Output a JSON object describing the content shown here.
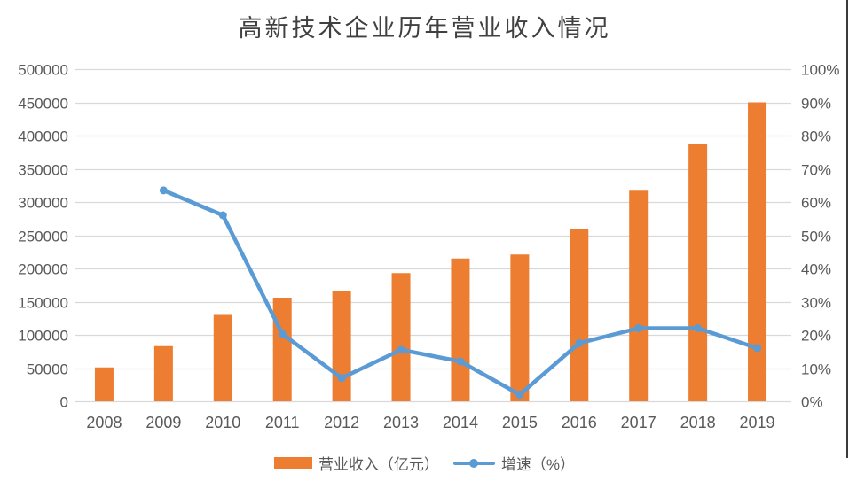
{
  "chart_data": {
    "type": "combo-bar-line",
    "title": "高新技术企业历年营业收入情况",
    "categories": [
      "2008",
      "2009",
      "2010",
      "2011",
      "2012",
      "2013",
      "2014",
      "2015",
      "2016",
      "2017",
      "2018",
      "2019"
    ],
    "series": [
      {
        "name": "营业收入（亿元）",
        "type": "bar",
        "axis": "left",
        "color": "#ED7D31",
        "values": [
          51000,
          83000,
          130000,
          156000,
          166000,
          193000,
          215000,
          221000,
          259000,
          317000,
          388000,
          450000
        ]
      },
      {
        "name": "增速（%）",
        "type": "line",
        "axis": "right",
        "color": "#5B9BD5",
        "values": [
          null,
          63.5,
          56,
          20.3,
          7,
          15.5,
          12,
          2,
          17.5,
          22,
          22,
          16
        ]
      }
    ],
    "left_axis": {
      "min": 0,
      "max": 500000,
      "step": 50000,
      "tick_labels": [
        "0",
        "50000",
        "100000",
        "150000",
        "200000",
        "250000",
        "300000",
        "350000",
        "400000",
        "450000",
        "500000"
      ]
    },
    "right_axis": {
      "min": 0,
      "max": 100,
      "step": 10,
      "suffix": "%",
      "tick_labels": [
        "0%",
        "10%",
        "20%",
        "30%",
        "40%",
        "50%",
        "60%",
        "70%",
        "80%",
        "90%",
        "100%"
      ]
    },
    "grid": true,
    "gridline_color": "#D9D9D9",
    "tick_label_color": "#595959",
    "legend_position": "bottom"
  }
}
